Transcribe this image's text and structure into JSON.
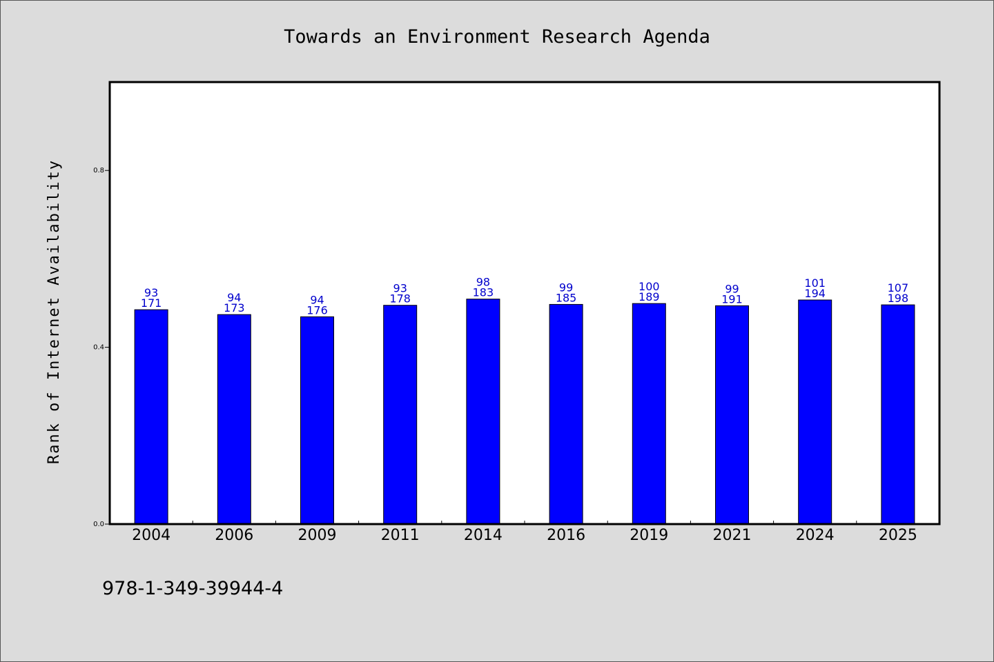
{
  "chart_data": {
    "type": "bar",
    "title": "Towards an Environment Research Agenda",
    "xlabel": "",
    "ylabel": "Rank of Internet Availability",
    "categories": [
      "2004",
      "2006",
      "2009",
      "2011",
      "2014",
      "2016",
      "2019",
      "2021",
      "2024",
      "2025"
    ],
    "values": [
      0.485,
      0.474,
      0.469,
      0.495,
      0.509,
      0.497,
      0.499,
      0.494,
      0.507,
      0.496
    ],
    "labels_top": [
      "93",
      "94",
      "94",
      "93",
      "98",
      "99",
      "100",
      "99",
      "101",
      "107"
    ],
    "labels_bottom": [
      "171",
      "173",
      "176",
      "178",
      "183",
      "185",
      "189",
      "191",
      "194",
      "198"
    ],
    "yticks": [
      0.0,
      0.4,
      0.8
    ],
    "ytick_labels": [
      "0.0",
      "0.4",
      "0.8"
    ],
    "ylim": [
      0,
      1.0
    ],
    "grid": false,
    "legend": "none",
    "bar_color": "#0000ff",
    "label_color": "#0000cc"
  },
  "footer": {
    "isbn": "978-1-349-39944-4"
  }
}
